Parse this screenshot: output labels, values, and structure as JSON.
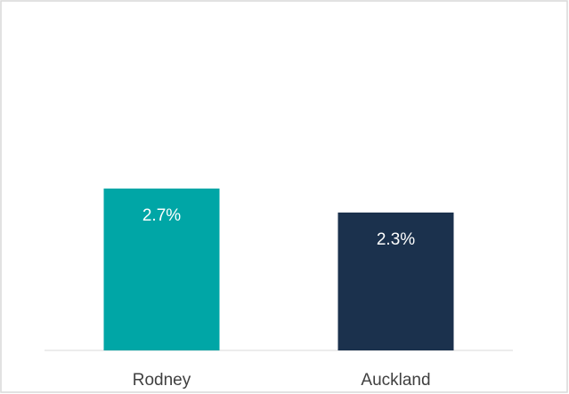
{
  "chart_data": {
    "type": "bar",
    "categories": [
      "Rodney",
      "Auckland"
    ],
    "values": [
      2.7,
      2.3
    ],
    "value_labels": [
      "2.7%",
      "2.3%"
    ],
    "colors": [
      "#00a6a6",
      "#1b314d"
    ]
  }
}
